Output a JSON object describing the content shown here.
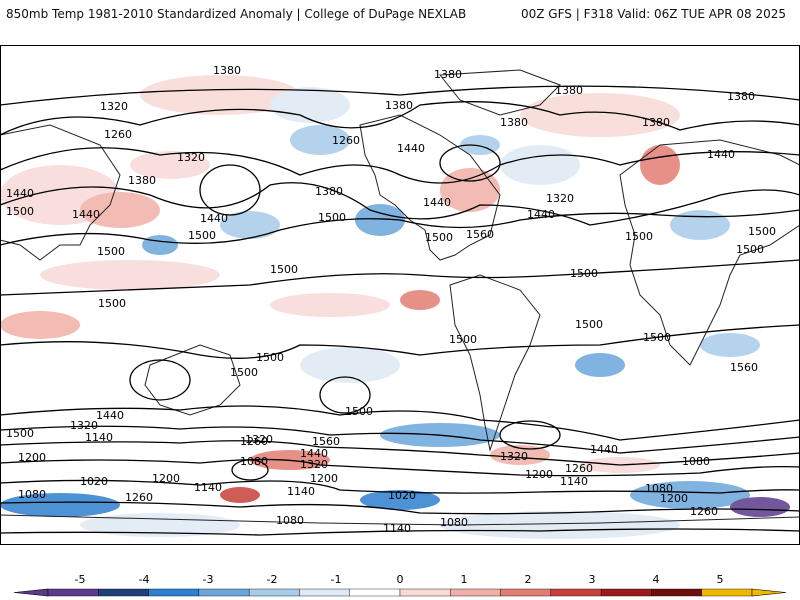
{
  "header": {
    "title": "850mb Temp 1981-2010 Standardized Anomaly | College of DuPage NEXLAB",
    "run_info": "00Z GFS | F318 Valid: 06Z TUE APR 08 2025"
  },
  "contour_labels": [
    "1380",
    "1380",
    "1380",
    "1380",
    "1380",
    "1380",
    "1380",
    "1380",
    "1380",
    "1320",
    "1320",
    "1320",
    "1320",
    "1320",
    "1320",
    "1320",
    "1260",
    "1260",
    "1260",
    "1260",
    "1260",
    "1260",
    "1440",
    "1440",
    "1440",
    "1440",
    "1440",
    "1440",
    "1440",
    "1440",
    "1440",
    "1440",
    "1500",
    "1500",
    "1500",
    "1500",
    "1500",
    "1500",
    "1500",
    "1500",
    "1500",
    "1500",
    "1500",
    "1500",
    "1500",
    "1500",
    "1500",
    "1500",
    "1500",
    "1500",
    "1560",
    "1560",
    "1560",
    "1200",
    "1200",
    "1200",
    "1200",
    "1200",
    "1140",
    "1140",
    "1140",
    "1140",
    "1140",
    "1080",
    "1080",
    "1080",
    "1080",
    "1080",
    "1080",
    "1020",
    "1020"
  ],
  "colorbar": {
    "ticks": [
      "-5",
      "-4",
      "-3",
      "-2",
      "-1",
      "0",
      "1",
      "2",
      "3",
      "4",
      "5"
    ],
    "colors": [
      "#5b3a8c",
      "#1f3f7a",
      "#2f7fcf",
      "#6aa6db",
      "#a9cbea",
      "#dfe9f4",
      "#ffffff",
      "#f7d9d6",
      "#f0b0a8",
      "#e37d73",
      "#c8403b",
      "#9b1c1c",
      "#6e0f0f",
      "#f2b800"
    ]
  },
  "legend_icons": {
    "left_arrow": "colorbar-left-arrow-icon",
    "right_arrow": "colorbar-right-arrow-icon"
  }
}
